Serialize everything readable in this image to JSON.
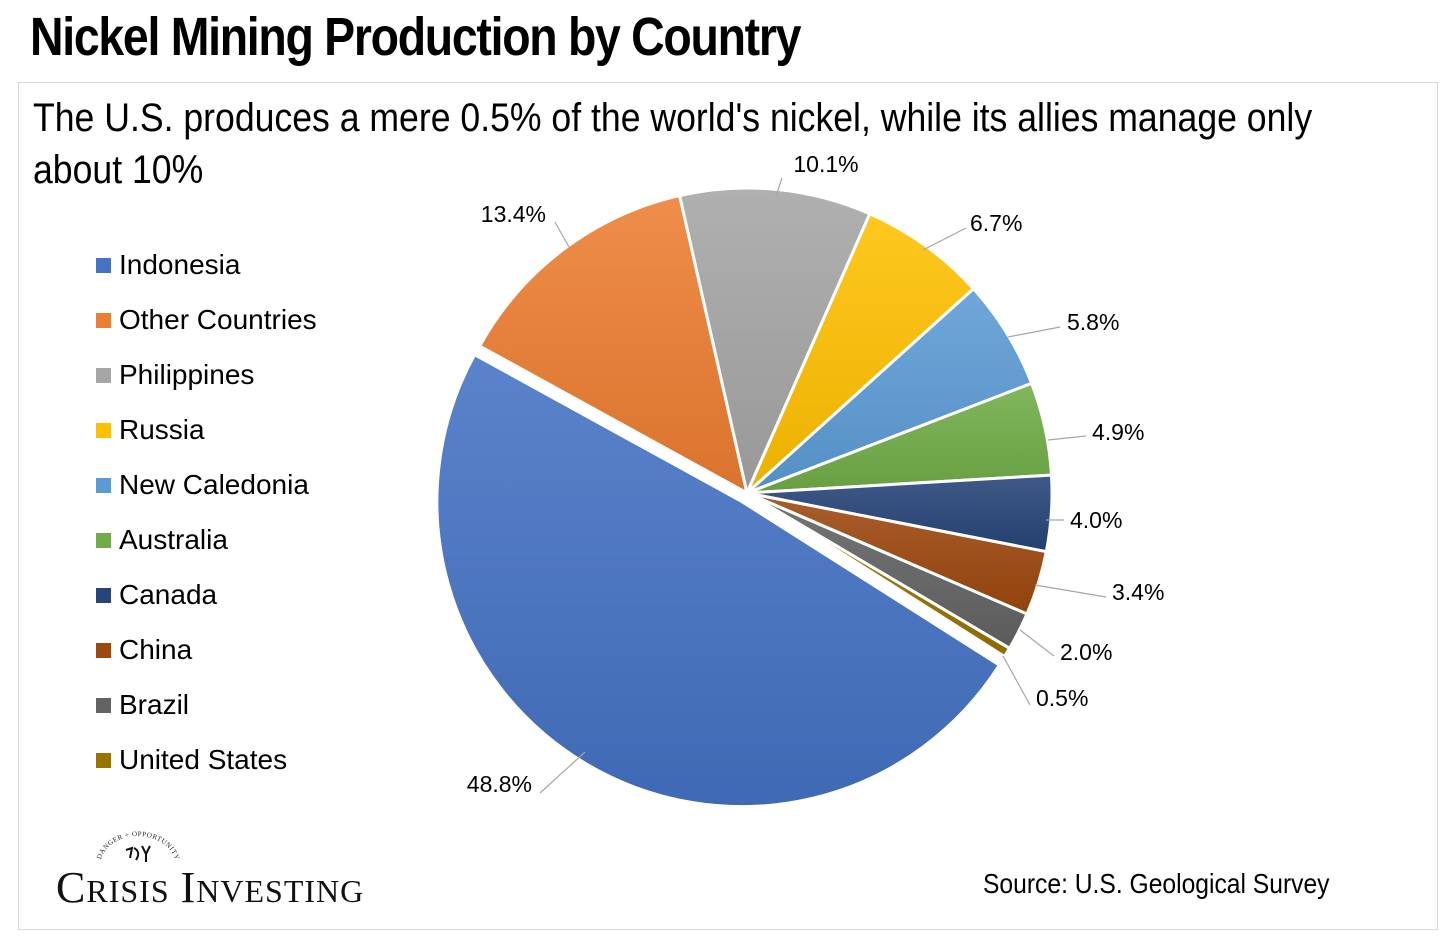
{
  "header": {
    "title": "Nickel Mining Production by Country",
    "subtitle": "The U.S. produces a mere 0.5% of the world's nickel, while its allies manage only about 10%"
  },
  "footer": {
    "logo_text": "Crisis Investing",
    "logo_tagline": "DANGER + OPPORTUNITY",
    "source": "Source: U.S. Geological Survey"
  },
  "chart_data": {
    "type": "pie",
    "title": "The U.S. produces a mere 0.5% of the world's nickel, while its allies manage only about 10%",
    "legend_position": "left",
    "categories": [
      "Indonesia",
      "Other Countries",
      "Philippines",
      "Russia",
      "New Caledonia",
      "Australia",
      "Canada",
      "China",
      "Brazil",
      "United States"
    ],
    "values": [
      48.8,
      13.4,
      10.1,
      6.7,
      5.8,
      4.9,
      4.0,
      3.4,
      2.0,
      0.5
    ],
    "labels": [
      "48.8%",
      "13.4%",
      "10.1%",
      "6.7%",
      "5.8%",
      "4.9%",
      "4.0%",
      "3.4%",
      "2.0%",
      "0.5%"
    ],
    "colors": [
      "#4472c4",
      "#ed7d31",
      "#a5a5a5",
      "#ffc000",
      "#5b9bd5",
      "#70ad47",
      "#264478",
      "#9e480e",
      "#636363",
      "#997300"
    ],
    "exploded": [
      "Indonesia"
    ]
  }
}
